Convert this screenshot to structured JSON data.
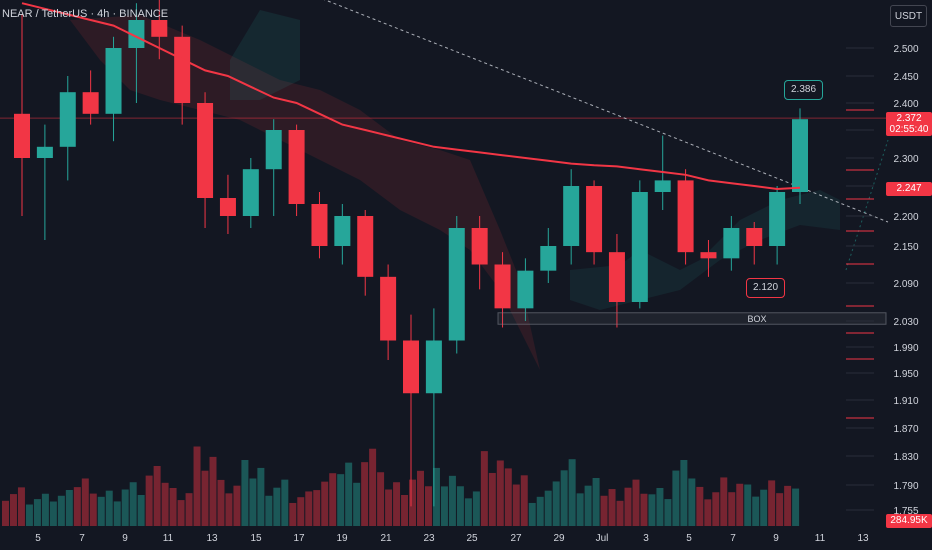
{
  "title": "NEAR / TetherUS · 4h · BINANCE",
  "currency": "USDT",
  "last_price": "2.372",
  "countdown": "02:55:40",
  "ma_price": "2.247",
  "volume_last": "284.95K",
  "box_label": "BOX",
  "high_callout": "2.386",
  "low_callout": "2.120",
  "colors": {
    "background": "#131722",
    "up": "#26a69a",
    "down": "#f23645",
    "ma": "#f23645",
    "text": "#d1d4dc"
  },
  "chart_data": {
    "type": "candlestick",
    "symbol": "NEAR / TetherUS",
    "interval": "4h",
    "exchange": "BINANCE",
    "y_axis": {
      "ticks": [
        "2.500",
        "2.450",
        "2.400",
        "2.350",
        "2.300",
        "2.250",
        "2.200",
        "2.150",
        "2.090",
        "2.030",
        "1.990",
        "1.950",
        "1.910",
        "1.870",
        "1.830",
        "1.790",
        "1.755"
      ],
      "range": [
        1.74,
        2.58
      ]
    },
    "x_axis": {
      "ticks": [
        "5",
        "7",
        "9",
        "11",
        "13",
        "15",
        "17",
        "19",
        "21",
        "23",
        "25",
        "27",
        "29",
        "Jul",
        "3",
        "5",
        "7",
        "9",
        "11",
        "13"
      ]
    },
    "candles": [
      {
        "date": "5",
        "open": 2.38,
        "high": 2.56,
        "low": 2.2,
        "close": 2.3
      },
      {
        "date": "6",
        "open": 2.3,
        "high": 2.36,
        "low": 2.16,
        "close": 2.32
      },
      {
        "date": "7",
        "open": 2.32,
        "high": 2.45,
        "low": 2.26,
        "close": 2.42
      },
      {
        "date": "8",
        "open": 2.42,
        "high": 2.46,
        "low": 2.36,
        "close": 2.38
      },
      {
        "date": "9",
        "open": 2.38,
        "high": 2.52,
        "low": 2.33,
        "close": 2.5
      },
      {
        "date": "10",
        "open": 2.5,
        "high": 2.58,
        "low": 2.4,
        "close": 2.55
      },
      {
        "date": "11",
        "open": 2.55,
        "high": 2.59,
        "low": 2.48,
        "close": 2.52
      },
      {
        "date": "12",
        "open": 2.52,
        "high": 2.54,
        "low": 2.36,
        "close": 2.4
      },
      {
        "date": "13",
        "open": 2.4,
        "high": 2.42,
        "low": 2.18,
        "close": 2.23
      },
      {
        "date": "14",
        "open": 2.23,
        "high": 2.27,
        "low": 2.17,
        "close": 2.2
      },
      {
        "date": "15",
        "open": 2.2,
        "high": 2.3,
        "low": 2.18,
        "close": 2.28
      },
      {
        "date": "16",
        "open": 2.28,
        "high": 2.37,
        "low": 2.2,
        "close": 2.35
      },
      {
        "date": "17",
        "open": 2.35,
        "high": 2.36,
        "low": 2.2,
        "close": 2.22
      },
      {
        "date": "18",
        "open": 2.22,
        "high": 2.24,
        "low": 2.13,
        "close": 2.15
      },
      {
        "date": "19",
        "open": 2.15,
        "high": 2.22,
        "low": 2.12,
        "close": 2.2
      },
      {
        "date": "20",
        "open": 2.2,
        "high": 2.21,
        "low": 2.07,
        "close": 2.1
      },
      {
        "date": "21",
        "open": 2.1,
        "high": 2.12,
        "low": 1.97,
        "close": 2.0
      },
      {
        "date": "22",
        "open": 2.0,
        "high": 2.04,
        "low": 1.76,
        "close": 1.92
      },
      {
        "date": "23",
        "open": 1.92,
        "high": 2.05,
        "low": 1.76,
        "close": 2.0
      },
      {
        "date": "24",
        "open": 2.0,
        "high": 2.2,
        "low": 1.98,
        "close": 2.18
      },
      {
        "date": "25",
        "open": 2.18,
        "high": 2.2,
        "low": 2.08,
        "close": 2.12
      },
      {
        "date": "26",
        "open": 2.12,
        "high": 2.14,
        "low": 2.02,
        "close": 2.05
      },
      {
        "date": "27",
        "open": 2.05,
        "high": 2.13,
        "low": 2.03,
        "close": 2.11
      },
      {
        "date": "28",
        "open": 2.11,
        "high": 2.18,
        "low": 2.09,
        "close": 2.15
      },
      {
        "date": "29",
        "open": 2.15,
        "high": 2.28,
        "low": 2.12,
        "close": 2.25
      },
      {
        "date": "30",
        "open": 2.25,
        "high": 2.26,
        "low": 2.12,
        "close": 2.14
      },
      {
        "date": "Jul",
        "open": 2.14,
        "high": 2.17,
        "low": 2.02,
        "close": 2.06
      },
      {
        "date": "2",
        "open": 2.06,
        "high": 2.26,
        "low": 2.05,
        "close": 2.24
      },
      {
        "date": "3",
        "open": 2.24,
        "high": 2.34,
        "low": 2.21,
        "close": 2.26
      },
      {
        "date": "4",
        "open": 2.26,
        "high": 2.28,
        "low": 2.12,
        "close": 2.14
      },
      {
        "date": "5",
        "open": 2.14,
        "high": 2.16,
        "low": 2.1,
        "close": 2.13
      },
      {
        "date": "6",
        "open": 2.13,
        "high": 2.2,
        "low": 2.11,
        "close": 2.18
      },
      {
        "date": "7",
        "open": 2.18,
        "high": 2.19,
        "low": 2.12,
        "close": 2.15
      },
      {
        "date": "8",
        "open": 2.15,
        "high": 2.25,
        "low": 2.12,
        "close": 2.24
      },
      {
        "date": "9",
        "open": 2.24,
        "high": 2.39,
        "low": 2.22,
        "close": 2.37
      }
    ],
    "moving_average": {
      "color": "#f23645",
      "values": [
        2.58,
        2.57,
        2.56,
        2.55,
        2.54,
        2.52,
        2.5,
        2.48,
        2.46,
        2.45,
        2.43,
        2.41,
        2.4,
        2.38,
        2.36,
        2.35,
        2.34,
        2.33,
        2.32,
        2.315,
        2.31,
        2.305,
        2.3,
        2.295,
        2.29,
        2.287,
        2.285,
        2.28,
        2.275,
        2.27,
        2.26,
        2.255,
        2.25,
        2.245,
        2.247
      ]
    },
    "trendline": {
      "from": {
        "date": "17",
        "price": 2.6
      },
      "to": {
        "date": "13",
        "price": 2.185
      },
      "style": "dotted"
    },
    "horizontal_line": {
      "price": 2.372
    },
    "box": {
      "label": "BOX",
      "from_date": "25",
      "to_date": "13",
      "price_top": 2.043,
      "price_bottom": 2.025
    },
    "volume": {
      "last": "284.95K",
      "values": [
        0.35,
        0.28,
        0.3,
        0.45,
        0.32,
        0.38,
        0.5,
        0.36,
        0.72,
        0.4,
        0.55,
        0.42,
        0.3,
        0.44,
        0.6,
        0.7,
        0.38,
        0.46,
        0.55,
        0.36,
        0.65,
        0.48,
        0.32,
        0.58,
        0.4,
        0.35,
        0.42,
        0.33,
        0.55,
        0.37,
        0.44,
        0.36,
        0.38,
        0.52,
        0.48
      ]
    }
  }
}
